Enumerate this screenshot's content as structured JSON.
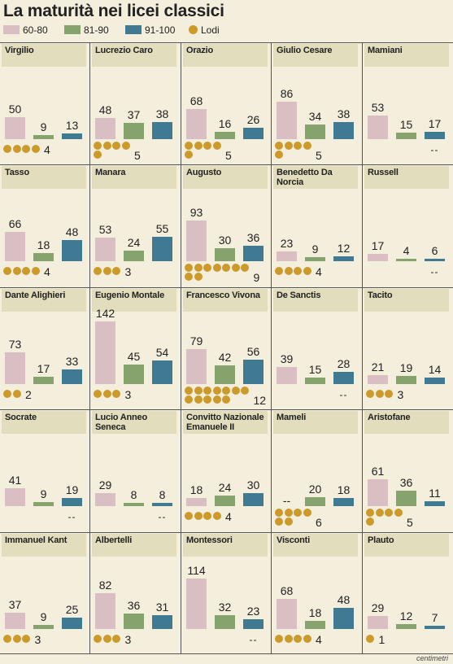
{
  "title": "La maturità nei licei classici",
  "legend": [
    {
      "label": "60-80",
      "color": "#d9bfc4",
      "shape": "square"
    },
    {
      "label": "81-90",
      "color": "#86a36e",
      "shape": "square"
    },
    {
      "label": "91-100",
      "color": "#3f7a92",
      "shape": "square"
    },
    {
      "label": "Lodi",
      "color": "#cc9a2b",
      "shape": "circle"
    }
  ],
  "colors": {
    "c60_80": "#d9bfc4",
    "c81_90": "#86a36e",
    "c91_100": "#3f7a92",
    "lodi": "#cc9a2b",
    "header": "#e2ddbc",
    "background": "#f4eedc"
  },
  "missing_label": "--",
  "footer": "centimetri",
  "chart_data": {
    "type": "bar",
    "title": "La maturità nei licei classici",
    "categories": [
      "60-80",
      "81-90",
      "91-100"
    ],
    "series_names": [
      "60-80",
      "81-90",
      "91-100",
      "Lodi"
    ],
    "panels": [
      {
        "name": "Virgilio",
        "values": [
          50,
          9,
          13
        ],
        "lodi": 4
      },
      {
        "name": "Lucrezio Caro",
        "values": [
          48,
          37,
          38
        ],
        "lodi": 5
      },
      {
        "name": "Orazio",
        "values": [
          68,
          16,
          26
        ],
        "lodi": 5
      },
      {
        "name": "Giulio Cesare",
        "values": [
          86,
          34,
          38
        ],
        "lodi": 5
      },
      {
        "name": "Mamiani",
        "values": [
          53,
          15,
          17
        ],
        "lodi": null
      },
      {
        "name": "Tasso",
        "values": [
          66,
          18,
          48
        ],
        "lodi": 4
      },
      {
        "name": "Manara",
        "values": [
          53,
          24,
          55
        ],
        "lodi": 3
      },
      {
        "name": "Augusto",
        "values": [
          93,
          30,
          36
        ],
        "lodi": 9
      },
      {
        "name": "Benedetto Da Norcia",
        "values": [
          23,
          9,
          12
        ],
        "lodi": 4
      },
      {
        "name": "Russell",
        "values": [
          17,
          4,
          6
        ],
        "lodi": null
      },
      {
        "name": "Dante Alighieri",
        "values": [
          73,
          17,
          33
        ],
        "lodi": 2
      },
      {
        "name": "Eugenio Montale",
        "values": [
          142,
          45,
          54
        ],
        "lodi": 3
      },
      {
        "name": "Francesco Vivona",
        "values": [
          79,
          42,
          56
        ],
        "lodi": 12
      },
      {
        "name": "De Sanctis",
        "values": [
          39,
          15,
          28
        ],
        "lodi": null
      },
      {
        "name": "Tacito",
        "values": [
          21,
          19,
          14
        ],
        "lodi": 3
      },
      {
        "name": "Socrate",
        "values": [
          41,
          9,
          19
        ],
        "lodi": null
      },
      {
        "name": "Lucio Anneo Seneca",
        "values": [
          29,
          8,
          8
        ],
        "lodi": null
      },
      {
        "name": "Convitto Nazionale Emanuele II",
        "values": [
          18,
          24,
          30
        ],
        "lodi": 4
      },
      {
        "name": "Mameli",
        "values": [
          null,
          20,
          18
        ],
        "lodi": 6
      },
      {
        "name": "Aristofane",
        "values": [
          61,
          36,
          11
        ],
        "lodi": 5
      },
      {
        "name": "Immanuel Kant",
        "values": [
          37,
          9,
          25
        ],
        "lodi": 3
      },
      {
        "name": "Albertelli",
        "values": [
          82,
          36,
          31
        ],
        "lodi": 3
      },
      {
        "name": "Montessori",
        "values": [
          114,
          32,
          23
        ],
        "lodi": null
      },
      {
        "name": "Visconti",
        "values": [
          68,
          18,
          48
        ],
        "lodi": 4
      },
      {
        "name": "Plauto",
        "values": [
          29,
          12,
          7
        ],
        "lodi": 1
      }
    ]
  }
}
